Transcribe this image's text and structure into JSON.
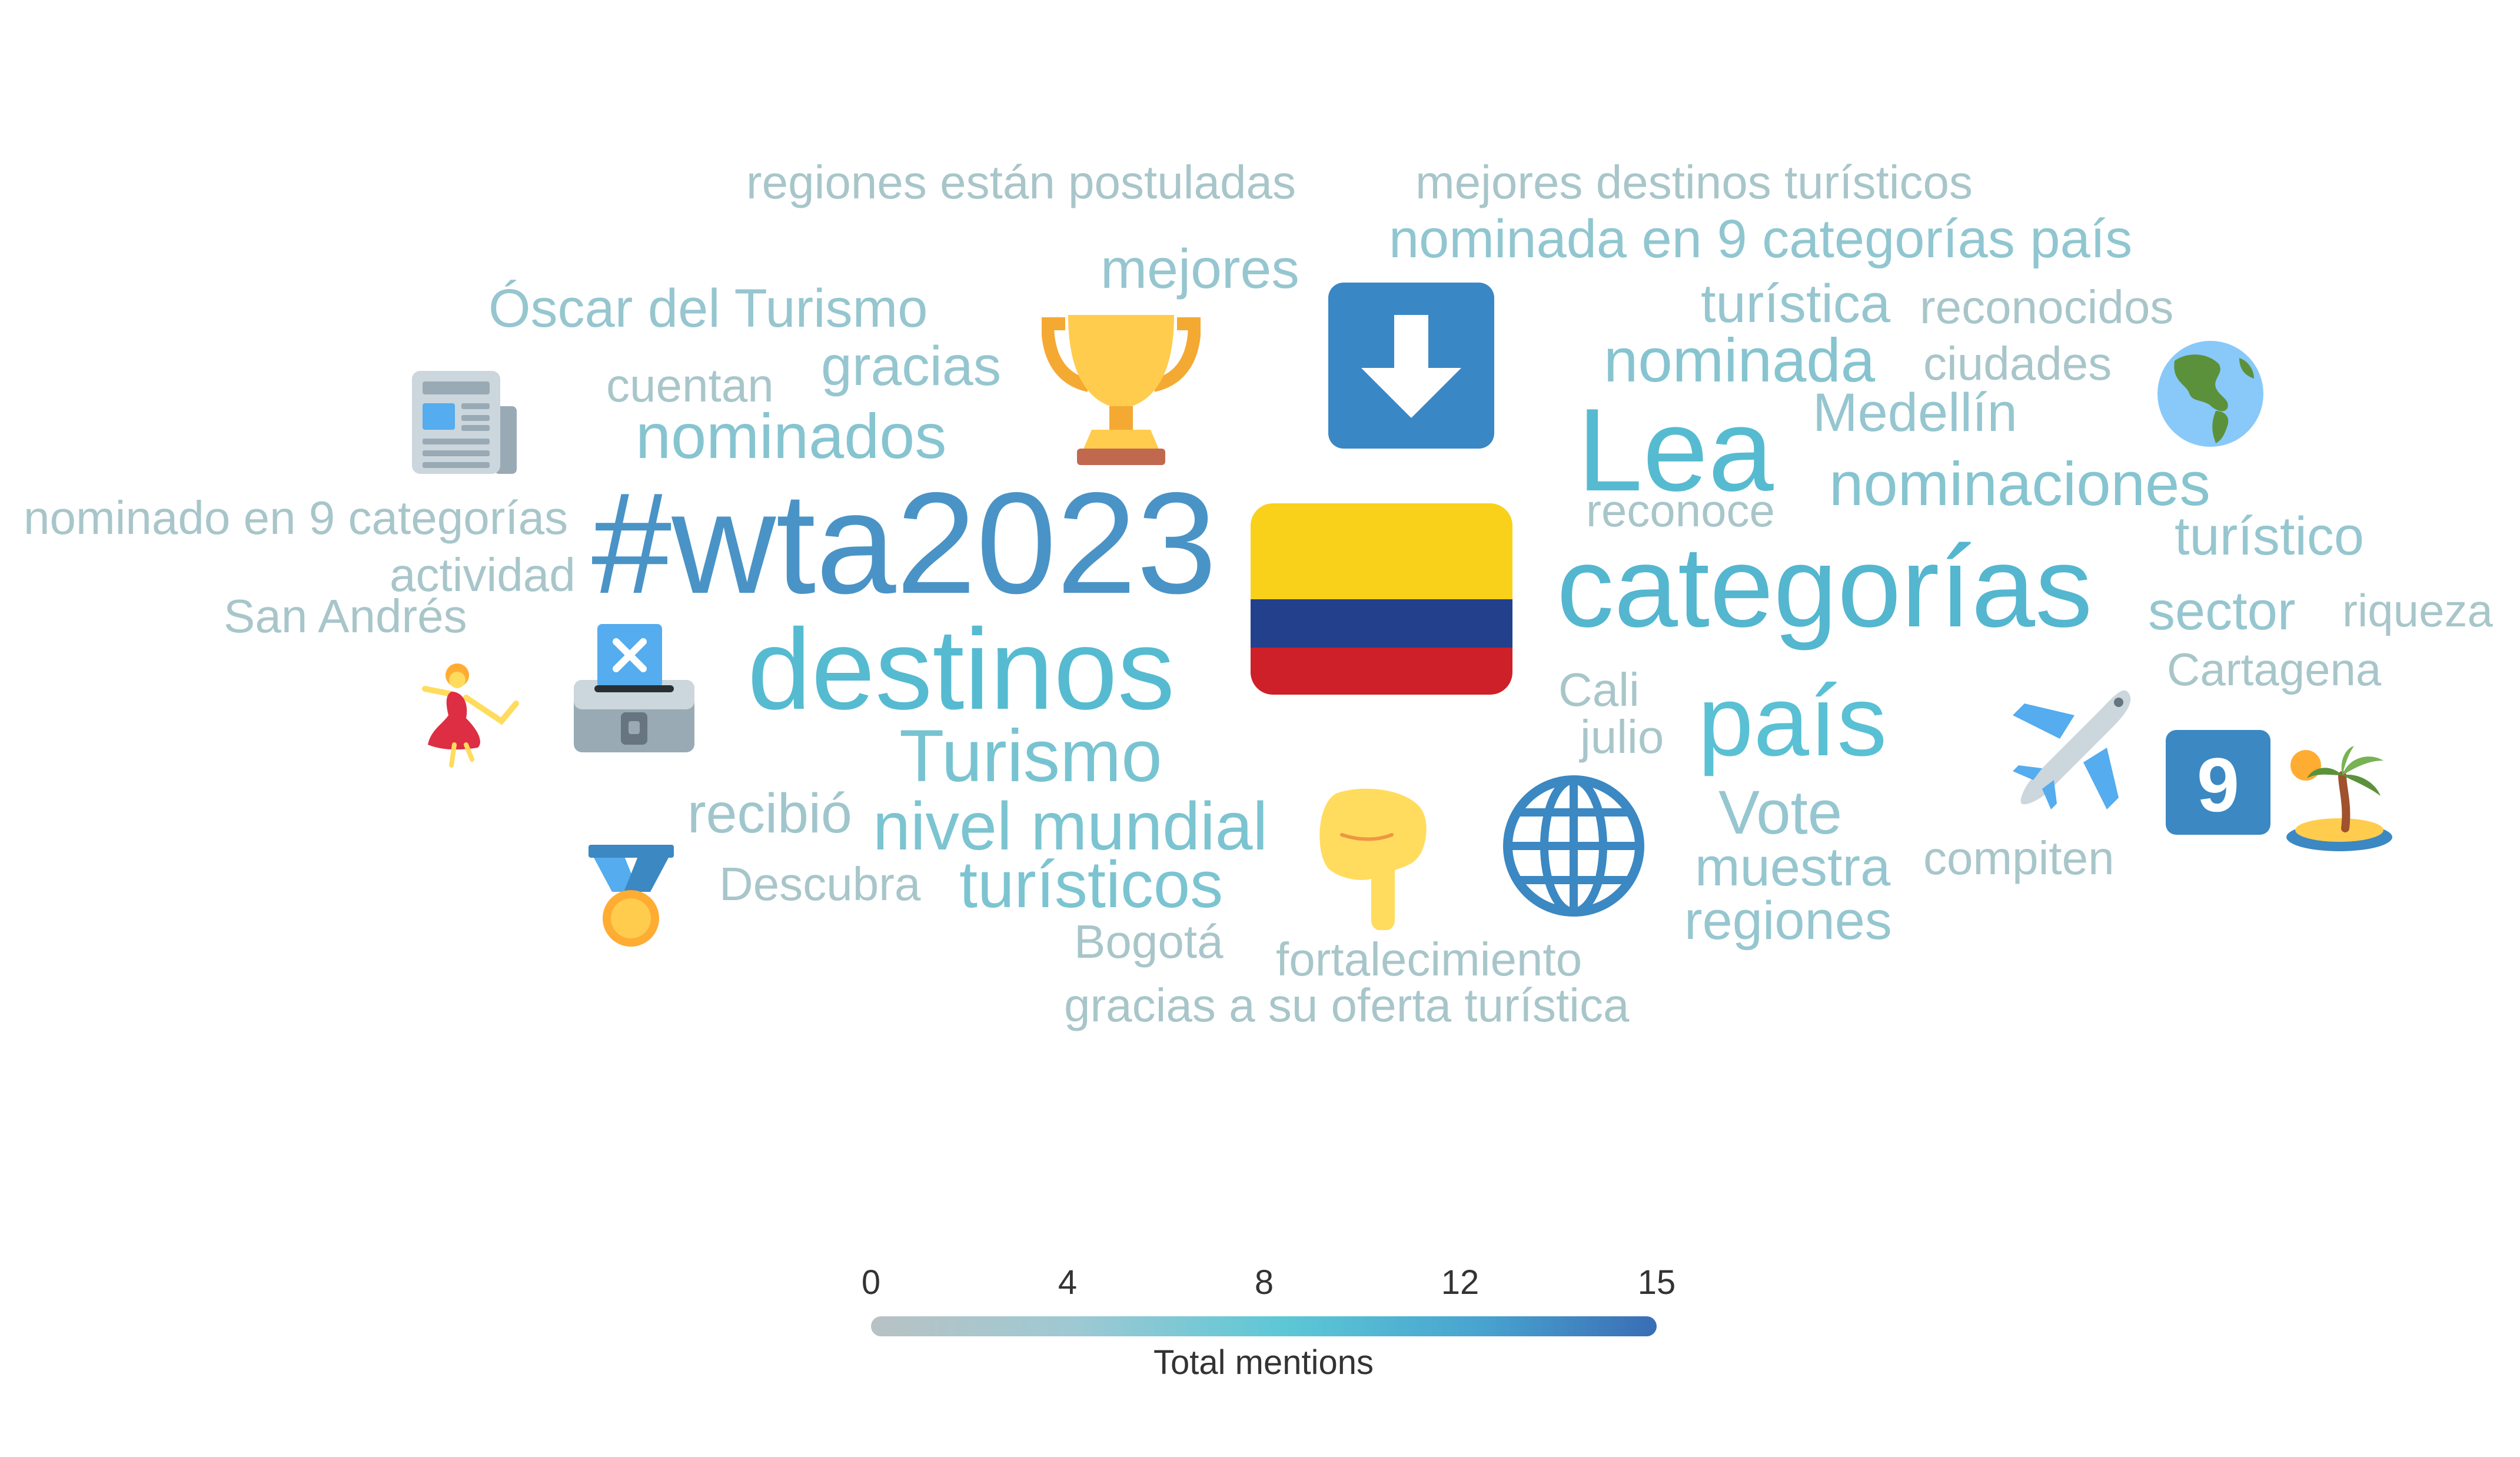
{
  "words": [
    {
      "text": "#wta2023",
      "count": 14,
      "color": "#4a93c6"
    },
    {
      "text": "categorías",
      "count": 11,
      "color": "#54b6cf"
    },
    {
      "text": "destinos",
      "count": 11,
      "color": "#56bbd0"
    },
    {
      "text": "Lea",
      "count": 10,
      "color": "#56bbd0"
    },
    {
      "text": "país",
      "count": 9,
      "color": "#5ac0d4"
    },
    {
      "text": "Turismo",
      "count": 7,
      "color": "#78c3d1"
    },
    {
      "text": "nivel mundial",
      "count": 7,
      "color": "#7cc4d1"
    },
    {
      "text": "turísticos",
      "count": 7,
      "color": "#7cc4d1"
    },
    {
      "text": "nominados",
      "count": 6,
      "color": "#86c4d0"
    },
    {
      "text": "nominaciones",
      "count": 6,
      "color": "#86c4d0"
    },
    {
      "text": "nominada",
      "count": 6,
      "color": "#86c4d0"
    },
    {
      "text": "nominada en 9 categorías país",
      "count": 5,
      "color": "#90c6d0"
    },
    {
      "text": "Óscar del Turismo",
      "count": 5,
      "color": "#96c6cf"
    },
    {
      "text": "mejores",
      "count": 5,
      "color": "#96c6cf"
    },
    {
      "text": "gracias",
      "count": 5,
      "color": "#96c6cf"
    },
    {
      "text": "turística",
      "count": 5,
      "color": "#96c6cf"
    },
    {
      "text": "Medellín",
      "count": 5,
      "color": "#96c6cf"
    },
    {
      "text": "turístico",
      "count": 5,
      "color": "#96c6cf"
    },
    {
      "text": "sector",
      "count": 5,
      "color": "#96c6cf"
    },
    {
      "text": "Vote",
      "count": 5,
      "color": "#96c6cf"
    },
    {
      "text": "muestra",
      "count": 5,
      "color": "#96c6cf"
    },
    {
      "text": "regiones",
      "count": 5,
      "color": "#96c6cf"
    },
    {
      "text": "recibió",
      "count": 4,
      "color": "#a0c6cc"
    },
    {
      "text": "regiones están postuladas",
      "count": 3,
      "color": "#a8c6ca"
    },
    {
      "text": "mejores destinos turísticos",
      "count": 3,
      "color": "#a8c6ca"
    },
    {
      "text": "reconocidos",
      "count": 3,
      "color": "#a8c6ca"
    },
    {
      "text": "ciudades",
      "count": 3,
      "color": "#a8c6ca"
    },
    {
      "text": "cuentan",
      "count": 3,
      "color": "#a8c6ca"
    },
    {
      "text": "nominado en 9 categorías",
      "count": 3,
      "color": "#a8c6ca"
    },
    {
      "text": "actividad",
      "count": 3,
      "color": "#a8c6ca"
    },
    {
      "text": "San Andrés",
      "count": 3,
      "color": "#a8c6ca"
    },
    {
      "text": "reconoce",
      "count": 3,
      "color": "#a8c6ca"
    },
    {
      "text": "riqueza",
      "count": 3,
      "color": "#a8c6ca"
    },
    {
      "text": "Cartagena",
      "count": 3,
      "color": "#a8c6ca"
    },
    {
      "text": "Cali",
      "count": 3,
      "color": "#a8c6ca"
    },
    {
      "text": "julio",
      "count": 3,
      "color": "#a8c6ca"
    },
    {
      "text": "compiten",
      "count": 3,
      "color": "#a8c6ca"
    },
    {
      "text": "Descubra",
      "count": 3,
      "color": "#a8c6ca"
    },
    {
      "text": "Bogotá",
      "count": 3,
      "color": "#a8c6ca"
    },
    {
      "text": "fortalecimiento",
      "count": 3,
      "color": "#a8c6ca"
    },
    {
      "text": "gracias a su oferta turística",
      "count": 3,
      "color": "#a8c6ca"
    }
  ],
  "emojis": [
    {
      "name": "colombia-flag-icon",
      "glyph": "🇨🇴"
    },
    {
      "name": "down-arrow-button-icon",
      "glyph": "⬇️"
    },
    {
      "name": "trophy-icon",
      "glyph": "🏆"
    },
    {
      "name": "newspaper-icon",
      "glyph": "📰"
    },
    {
      "name": "globe-americas-icon",
      "glyph": "🌎"
    },
    {
      "name": "ballot-box-icon",
      "glyph": "🗳️"
    },
    {
      "name": "dancer-icon",
      "glyph": "💃"
    },
    {
      "name": "medal-icon",
      "glyph": "🏅"
    },
    {
      "name": "pointing-down-hand-icon",
      "glyph": "👇"
    },
    {
      "name": "globe-meridians-icon",
      "glyph": "🌐"
    },
    {
      "name": "airplane-icon",
      "glyph": "✈️"
    },
    {
      "name": "keycap-9-icon",
      "glyph": "9️⃣"
    },
    {
      "name": "desert-island-icon",
      "glyph": "🏝️"
    }
  ],
  "legend": {
    "title": "Total mentions",
    "ticks": [
      "0",
      "4",
      "8",
      "12",
      "15"
    ],
    "min": 0,
    "max": 15,
    "colors": [
      "#b8c2c4",
      "#9ec9d3",
      "#5cc7d6",
      "#48a3cf",
      "#3a6db5"
    ]
  }
}
